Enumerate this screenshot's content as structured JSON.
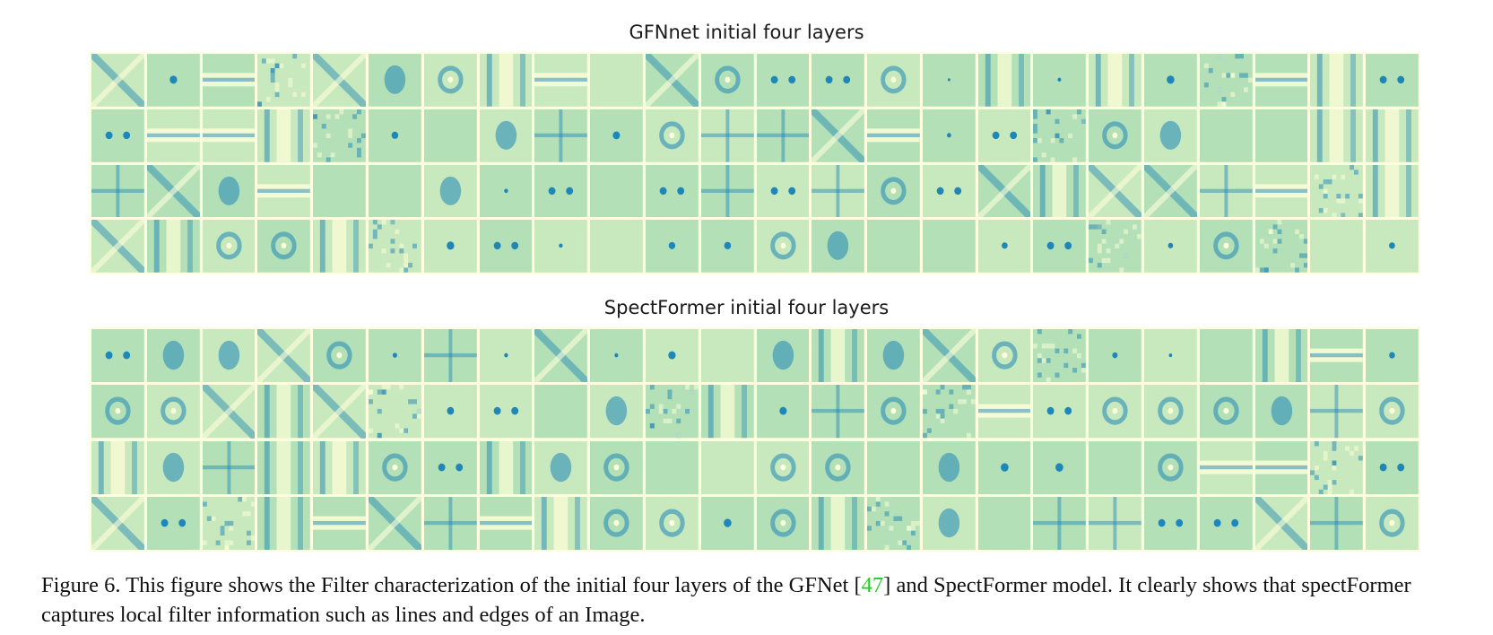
{
  "figure": {
    "panels": [
      {
        "title": "GFNnet initial four layers",
        "rows": 4,
        "cols": 24
      },
      {
        "title": "SpectFormer initial four layers",
        "rows": 4,
        "cols": 24
      }
    ],
    "colormap": {
      "low": "#ffffd9",
      "mid": "#b3e0b6",
      "high": "#1f86b8"
    },
    "caption": {
      "prefix": "Figure 6. This figure shows the Filter characterization of the initial four layers of the GFNet [",
      "citation": "47",
      "suffix": "] and SpectFormer model. It clearly shows that spectFormer captures local filter information such as lines and edges of an Image.",
      "citation_color": "#22cc22"
    }
  }
}
